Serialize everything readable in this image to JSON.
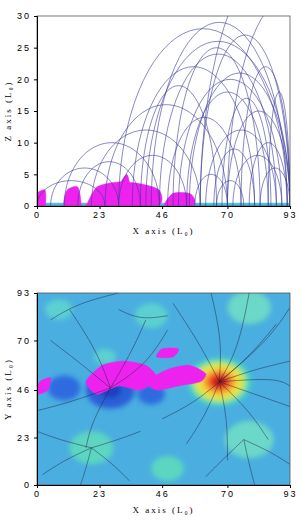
{
  "chart_data": [
    {
      "type": "loops",
      "xlabel": "X axis (L₀)",
      "ylabel": "Z axis (L₀)",
      "xlim": [
        0,
        93
      ],
      "ylim": [
        0,
        30
      ],
      "xticks": [
        0,
        23,
        46,
        70,
        93
      ],
      "yticks": [
        0,
        5,
        10,
        15,
        20,
        25,
        30
      ],
      "color": "#3a3a9a",
      "loops": {
        "x1": [
          30,
          40,
          45,
          35,
          52,
          55,
          60,
          25,
          48,
          62,
          65,
          20,
          10,
          5,
          15,
          70,
          72,
          58,
          66,
          75,
          78,
          38,
          42,
          50,
          82,
          68,
          0,
          30,
          85,
          56,
          60,
          70
        ],
        "x2": [
          92,
          93,
          88,
          80,
          90,
          85,
          93,
          70,
          75,
          88,
          80,
          60,
          45,
          30,
          38,
          93,
          90,
          70,
          76,
          93,
          92,
          66,
          92,
          82,
          93,
          86,
          25,
          55,
          93,
          93,
          120,
          115
        ],
        "h": [
          28,
          26,
          24,
          22,
          20,
          18,
          27,
          16,
          14,
          12,
          9,
          12,
          10,
          6,
          7,
          15,
          8,
          5,
          4,
          22,
          10,
          19,
          29,
          25,
          6,
          17,
          4,
          8,
          18,
          21,
          40,
          33
        ]
      },
      "regions": {
        "color": "#ee22ee",
        "x": [
          [
            0,
            3,
            3,
            0
          ],
          [
            10,
            16,
            15,
            11
          ],
          [
            18,
            22,
            30,
            38,
            45,
            44,
            18
          ],
          [
            47,
            50,
            56,
            58,
            57
          ],
          [
            30,
            34,
            33
          ]
        ],
        "y": [
          [
            0,
            0,
            2.5,
            2
          ],
          [
            0,
            0,
            3,
            2.5
          ],
          [
            0,
            3,
            3.8,
            3.5,
            2.5,
            0,
            0
          ],
          [
            0,
            2,
            2,
            1,
            0
          ],
          [
            3,
            3,
            5
          ]
        ]
      }
    },
    {
      "type": "map",
      "xlabel": "X axis (L₀)",
      "ylabel": "Y axis (L₀)",
      "xlim": [
        0,
        93
      ],
      "ylim": [
        0,
        93
      ],
      "xticks": [
        0,
        23,
        46,
        70,
        93
      ],
      "yticks": [
        0,
        23,
        46,
        70,
        93
      ],
      "color": "#222244",
      "blobs": {
        "x": [
          20,
          48,
          78,
          42,
          78,
          8,
          25,
          27,
          10,
          42,
          27,
          67,
          67,
          67,
          67,
          67,
          67
        ],
        "y": [
          18,
          8,
          22,
          82,
          86,
          85,
          62,
          46,
          47,
          44,
          46,
          50,
          50,
          50,
          50,
          50,
          50
        ],
        "r": [
          8,
          6,
          9,
          6,
          8,
          5,
          4,
          9,
          6,
          5,
          4,
          12,
          10,
          8,
          6,
          4,
          2
        ],
        "colors": [
          "#5cd6c0",
          "#5cd6c0",
          "#6cd8c8",
          "#5cd0d0",
          "#6cd8c8",
          "#5cd0d0",
          "#5cd0d0",
          "#2a5fd8",
          "#2f6be0",
          "#2f6be0",
          "#1d3fc0",
          "#3fd0c8",
          "#b8e860",
          "#f5e040",
          "#f5a030",
          "#e83020",
          "#c01010"
        ]
      },
      "regions": {
        "color": "#ee22ee",
        "x": [
          [
            18,
            24,
            32,
            40,
            44,
            38,
            30,
            22
          ],
          [
            40,
            48,
            56,
            62,
            60,
            52,
            44
          ],
          [
            46,
            52,
            50,
            44
          ],
          [
            0,
            4,
            5,
            1
          ]
        ],
        "y": [
          [
            50,
            58,
            60,
            58,
            52,
            46,
            48,
            44
          ],
          [
            50,
            56,
            58,
            54,
            50,
            48,
            46
          ],
          [
            66,
            66,
            62,
            62
          ],
          [
            44,
            46,
            52,
            50
          ]
        ]
      },
      "lines": {
        "x": [
          [
            67,
            80,
            93
          ],
          [
            67,
            78,
            88
          ],
          [
            67,
            74,
            78
          ],
          [
            67,
            68,
            64
          ],
          [
            67,
            60,
            50
          ],
          [
            67,
            80,
            93
          ],
          [
            67,
            78,
            85
          ],
          [
            67,
            70,
            70
          ],
          [
            67,
            62,
            55
          ],
          [
            67,
            58,
            46
          ],
          [
            67,
            88,
            93
          ],
          [
            67,
            85,
            93
          ],
          [
            27,
            15,
            5
          ],
          [
            27,
            22,
            12
          ],
          [
            27,
            35,
            40
          ],
          [
            27,
            12,
            0
          ],
          [
            27,
            20,
            18
          ],
          [
            27,
            40,
            48
          ],
          [
            20,
            10,
            2
          ],
          [
            20,
            18,
            16
          ],
          [
            20,
            28,
            34
          ],
          [
            20,
            30,
            38
          ],
          [
            20,
            8,
            0
          ],
          [
            76,
            86,
            93
          ],
          [
            76,
            78,
            80
          ],
          [
            76,
            68,
            62
          ],
          [
            5,
            15,
            30
          ],
          [
            30,
            38,
            48
          ]
        ],
        "y": [
          [
            50,
            56,
            60
          ],
          [
            50,
            62,
            78
          ],
          [
            50,
            66,
            93
          ],
          [
            50,
            70,
            93
          ],
          [
            50,
            68,
            88
          ],
          [
            50,
            44,
            38
          ],
          [
            50,
            36,
            22
          ],
          [
            50,
            32,
            12
          ],
          [
            50,
            34,
            20
          ],
          [
            50,
            40,
            32
          ],
          [
            50,
            52,
            48
          ],
          [
            50,
            70,
            86
          ],
          [
            47,
            60,
            70
          ],
          [
            47,
            65,
            85
          ],
          [
            47,
            65,
            80
          ],
          [
            47,
            40,
            36
          ],
          [
            47,
            30,
            18
          ],
          [
            47,
            58,
            75
          ],
          [
            18,
            12,
            5
          ],
          [
            18,
            8,
            0
          ],
          [
            18,
            10,
            2
          ],
          [
            18,
            22,
            26
          ],
          [
            18,
            22,
            26
          ],
          [
            22,
            16,
            10
          ],
          [
            22,
            10,
            0
          ],
          [
            22,
            12,
            4
          ],
          [
            80,
            88,
            93
          ],
          [
            85,
            80,
            82
          ]
        ]
      }
    }
  ]
}
